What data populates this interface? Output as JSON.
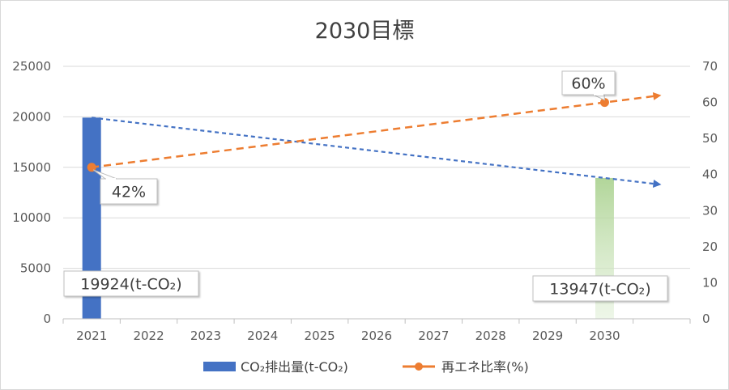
{
  "chart_data": {
    "type": "bar",
    "title": "2030目標",
    "categories": [
      "2021",
      "2022",
      "2023",
      "2024",
      "2025",
      "2026",
      "2027",
      "2028",
      "2029",
      "2030"
    ],
    "series": [
      {
        "name": "CO₂排出量(t-CO₂)",
        "type": "bar",
        "axis": "left",
        "color": "#4472c4",
        "values": [
          19924,
          null,
          null,
          null,
          null,
          null,
          null,
          null,
          null,
          13947
        ],
        "data_labels": [
          "19924(t-CO₂)",
          "",
          "",
          "",
          "",
          "",
          "",
          "",
          "",
          "13947(t-CO₂)"
        ]
      },
      {
        "name": "再エネ比率(%)",
        "type": "line",
        "axis": "right",
        "color": "#ed7d31",
        "values": [
          42,
          null,
          null,
          null,
          null,
          null,
          null,
          null,
          null,
          60
        ],
        "data_labels": [
          "42%",
          "",
          "",
          "",
          "",
          "",
          "",
          "",
          "",
          "60%"
        ]
      }
    ],
    "trendlines": [
      {
        "series": "CO₂排出量(t-CO₂)",
        "color": "#4472c4",
        "style": "dashed",
        "from": {
          "x": "2021",
          "y": 19924
        },
        "to": {
          "x": "2030",
          "y": 13947
        }
      },
      {
        "series": "再エネ比率(%)",
        "color": "#ed7d31",
        "style": "dashed",
        "from": {
          "x": "2021",
          "y": 42
        },
        "to": {
          "x": "2030",
          "y": 60
        }
      }
    ],
    "y_left": {
      "min": 0,
      "max": 25000,
      "ticks": [
        0,
        5000,
        10000,
        15000,
        20000,
        25000
      ]
    },
    "y_right": {
      "min": 0,
      "max": 70,
      "ticks": [
        0,
        10,
        20,
        30,
        40,
        50,
        60,
        70
      ]
    },
    "xlabel": "",
    "ylabel": "",
    "grid": true,
    "legend_position": "bottom"
  }
}
